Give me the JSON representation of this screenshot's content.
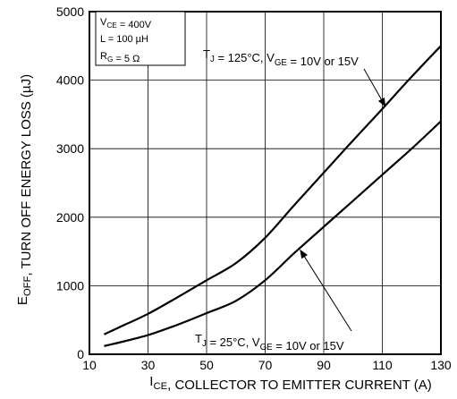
{
  "chart_data": {
    "type": "line",
    "xlabel": {
      "main": "I",
      "sub": "CE",
      "rest": ", COLLECTOR TO EMITTER CURRENT (A)"
    },
    "ylabel": {
      "main": "E",
      "sub": "OFF",
      "rest": ", TURN OFF ENERGY LOSS (µJ)"
    },
    "xlim": [
      10,
      130
    ],
    "ylim": [
      0,
      5000
    ],
    "xticks": [
      10,
      30,
      50,
      70,
      90,
      110,
      130
    ],
    "yticks": [
      0,
      1000,
      2000,
      3000,
      4000,
      5000
    ],
    "grid": true,
    "series": [
      {
        "x": [
          15,
          20,
          30,
          40,
          50,
          60,
          70,
          80,
          90,
          100,
          110,
          120,
          130
        ],
        "values": [
          290,
          390,
          590,
          830,
          1080,
          1330,
          1700,
          2180,
          2650,
          3120,
          3580,
          4050,
          4500
        ]
      },
      {
        "x": [
          15,
          20,
          30,
          40,
          50,
          60,
          70,
          80,
          90,
          100,
          110,
          120,
          130
        ],
        "values": [
          120,
          170,
          280,
          430,
          600,
          780,
          1080,
          1480,
          1860,
          2240,
          2620,
          3000,
          3400
        ]
      }
    ],
    "annotations": [
      {
        "id": "hot",
        "parts": [
          [
            "T",
            ""
          ],
          [
            "J",
            "sub"
          ],
          [
            " = 125°C, V",
            ""
          ],
          [
            "GE",
            "sub"
          ],
          [
            " = 10V or 15V",
            ""
          ]
        ],
        "arrow_to": [
          111,
          3620
        ]
      },
      {
        "id": "cold",
        "parts": [
          [
            "T",
            ""
          ],
          [
            "J",
            "sub"
          ],
          [
            " = 25°C, V",
            ""
          ],
          [
            "GE",
            "sub"
          ],
          [
            " = 10V or 15V",
            ""
          ]
        ],
        "arrow_to": [
          82,
          1520
        ]
      }
    ],
    "conditions": [
      [
        [
          "V",
          ""
        ],
        [
          "CE",
          "sub"
        ],
        [
          " =  400V",
          ""
        ]
      ],
      [
        [
          "L = 100 µH",
          ""
        ]
      ],
      [
        [
          "R",
          ""
        ],
        [
          "G",
          "sub"
        ],
        [
          " = 5 Ω",
          ""
        ]
      ]
    ]
  }
}
